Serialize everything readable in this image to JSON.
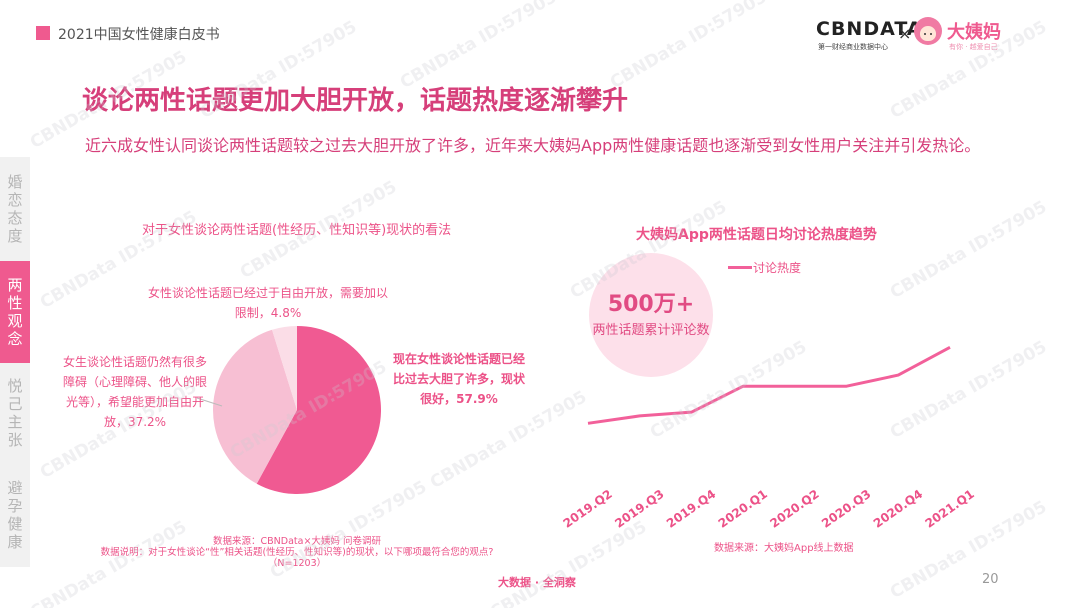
{
  "header": {
    "title": "2021中国女性健康白皮书",
    "logo_cbn": "CBNDATA",
    "logo_cbn_sub": "第一财经商业数据中心",
    "logo_x": "×",
    "logo_dym": "大姨妈",
    "logo_dym_sub": "有你 · 越爱自己",
    "brand_color": "#ef5a8f"
  },
  "main": {
    "title": "谈论两性话题更加大胆开放，话题热度逐渐攀升",
    "subtitle": "近六成女性认同谈论两性话题较之过去大胆开放了许多，近年来大姨妈App两性健康话题也逐渐受到女性用户关注并引发热论。"
  },
  "sidebar": {
    "items": [
      {
        "label": "婚恋态度",
        "active": false
      },
      {
        "label": "两性观念",
        "active": true
      },
      {
        "label": "悦己主张",
        "active": false
      },
      {
        "label": "避孕健康",
        "active": false
      }
    ]
  },
  "chart_data": [
    {
      "type": "pie",
      "title": "对于女性谈论两性话题(性经历、性知识等)现状的看法",
      "slices": [
        {
          "label": "现在女性谈论性话题已经比过去大胆了许多，现状很好，57.9%",
          "value": 57.9,
          "color": "#f05a92"
        },
        {
          "label": "女生谈论性话题仍然有很多障碍（心理障碍、他人的眼光等），希望能更加自由开放，37.2%",
          "value": 37.2,
          "color": "#f7bfd3"
        },
        {
          "label": "女性谈论性话题已经过于自由开放，需要加以限制，4.8%",
          "value": 4.8,
          "color": "#fbdde7"
        }
      ],
      "source": "数据来源：CBNData×大姨妈 问卷调研",
      "note": "数据说明：对于女性谈论“性”相关话题(性经历、性知识等)的现状，以下哪项最符合您的观点?",
      "sample": "（N=1203）"
    },
    {
      "type": "line",
      "title": "大姨妈App两性话题日均讨论热度趋势",
      "legend": "讨论热度",
      "legend_position": "top",
      "categories": [
        "2019.Q2",
        "2019.Q3",
        "2019.Q4",
        "2020.Q1",
        "2020.Q2",
        "2020.Q3",
        "2020.Q4",
        "2021.Q1"
      ],
      "series": [
        {
          "name": "讨论热度",
          "values": [
            18,
            26,
            30,
            58,
            58,
            58,
            70,
            100
          ],
          "color": "#f2609a"
        }
      ],
      "ylim": [
        0,
        110
      ],
      "y_axis_shown": false,
      "grid": false,
      "bubble_value": "500万+",
      "bubble_text": "两性话题累计评论数",
      "source": "数据来源：大姨妈App线上数据"
    }
  ],
  "footer": {
    "brand": "大数据 · 全洞察",
    "page": "20"
  },
  "watermark": "CBNData ID:57905"
}
